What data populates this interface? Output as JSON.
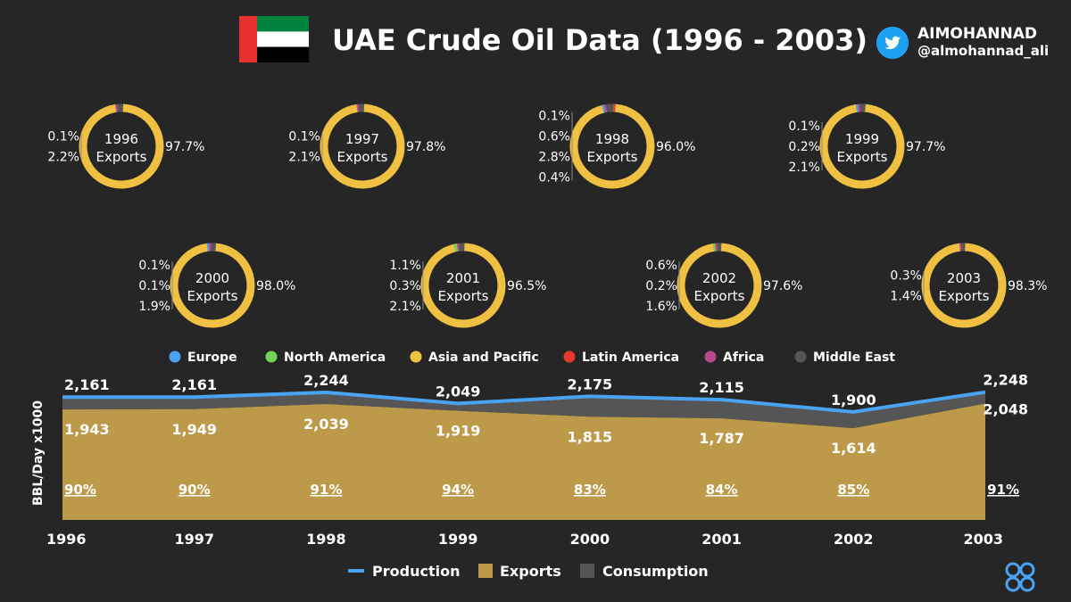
{
  "header": {
    "title": "UAE Crude Oil Data (1996 - 2003)",
    "brand_name": "AIMOHANNAD",
    "brand_handle": "@almohannad_ali",
    "flag_colors": {
      "green": "#00843d",
      "white": "#ffffff",
      "black": "#000000",
      "red": "#e8312f"
    }
  },
  "colors": {
    "europe": "#4aa3f0",
    "north_america": "#72d35a",
    "asia_pacific": "#f0c042",
    "latin_america": "#e63a2e",
    "africa": "#b8498e",
    "middle_east": "#555555",
    "production": "#4aa3f0",
    "exports": "#bd9a4a",
    "consumption": "#555555"
  },
  "chart_data": [
    {
      "type": "pie",
      "donut_label": "Exports",
      "legend": [
        "Europe",
        "North America",
        "Asia and Pacific",
        "Latin America",
        "Africa",
        "Middle East"
      ],
      "donuts": [
        {
          "year": "1996",
          "main_label": "97.7%",
          "side_labels": [
            "0.1%",
            "2.2%"
          ],
          "slices": [
            {
              "region": "Asia and Pacific",
              "value": 97.7
            },
            {
              "region": "Africa",
              "value": 0.1
            },
            {
              "region": "Middle East",
              "value": 2.2
            }
          ]
        },
        {
          "year": "1997",
          "main_label": "97.8%",
          "side_labels": [
            "0.1%",
            "2.1%"
          ],
          "slices": [
            {
              "region": "Asia and Pacific",
              "value": 97.8
            },
            {
              "region": "Africa",
              "value": 0.1
            },
            {
              "region": "Middle East",
              "value": 2.1
            }
          ]
        },
        {
          "year": "1998",
          "main_label": "96.0%",
          "side_labels": [
            "0.1%",
            "0.6%",
            "2.8%",
            "0.4%"
          ],
          "slices": [
            {
              "region": "Asia and Pacific",
              "value": 96.0
            },
            {
              "region": "Europe",
              "value": 0.1
            },
            {
              "region": "Africa",
              "value": 0.6
            },
            {
              "region": "Middle East",
              "value": 2.8
            },
            {
              "region": "Latin America",
              "value": 0.4
            }
          ]
        },
        {
          "year": "1999",
          "main_label": "97.7%",
          "side_labels": [
            "0.1%",
            "0.2%",
            "2.1%"
          ],
          "slices": [
            {
              "region": "Asia and Pacific",
              "value": 97.7
            },
            {
              "region": "Europe",
              "value": 0.1
            },
            {
              "region": "Africa",
              "value": 0.2
            },
            {
              "region": "Middle East",
              "value": 2.1
            }
          ]
        },
        {
          "year": "2000",
          "main_label": "98.0%",
          "side_labels": [
            "0.1%",
            "0.1%",
            "1.9%"
          ],
          "slices": [
            {
              "region": "Asia and Pacific",
              "value": 98.0
            },
            {
              "region": "Europe",
              "value": 0.1
            },
            {
              "region": "Africa",
              "value": 0.1
            },
            {
              "region": "Middle East",
              "value": 1.9
            }
          ]
        },
        {
          "year": "2001",
          "main_label": "96.5%",
          "side_labels": [
            "1.1%",
            "0.3%",
            "2.1%"
          ],
          "slices": [
            {
              "region": "Asia and Pacific",
              "value": 96.5
            },
            {
              "region": "North America",
              "value": 1.1
            },
            {
              "region": "Africa",
              "value": 0.3
            },
            {
              "region": "Middle East",
              "value": 2.1
            }
          ]
        },
        {
          "year": "2002",
          "main_label": "97.6%",
          "side_labels": [
            "0.6%",
            "0.2%",
            "1.6%"
          ],
          "slices": [
            {
              "region": "Asia and Pacific",
              "value": 97.6
            },
            {
              "region": "North America",
              "value": 0.6
            },
            {
              "region": "Africa",
              "value": 0.2
            },
            {
              "region": "Middle East",
              "value": 1.6
            }
          ]
        },
        {
          "year": "2003",
          "main_label": "98.3%",
          "side_labels": [
            "0.3%",
            "1.4%"
          ],
          "slices": [
            {
              "region": "Asia and Pacific",
              "value": 98.3
            },
            {
              "region": "Africa",
              "value": 0.3
            },
            {
              "region": "Middle East",
              "value": 1.4
            }
          ]
        }
      ]
    },
    {
      "type": "area",
      "ylabel": "BBL/Day x1000",
      "x": [
        "1996",
        "1997",
        "1998",
        "1999",
        "2000",
        "2001",
        "2002",
        "2003"
      ],
      "ylim": [
        0,
        2400
      ],
      "series": [
        {
          "name": "Production",
          "type": "line",
          "values": [
            2161,
            2161,
            2244,
            2049,
            2175,
            2115,
            1900,
            2248
          ],
          "labels": [
            "2,161",
            "2,161",
            "2,244",
            "2,049",
            "2,175",
            "2,115",
            "1,900",
            "2,248"
          ]
        },
        {
          "name": "Exports",
          "type": "area",
          "values": [
            1943,
            1949,
            2039,
            1919,
            1815,
            1787,
            1614,
            2048
          ],
          "labels": [
            "1,943",
            "1,949",
            "2,039",
            "1,919",
            "1,815",
            "1,787",
            "1,614",
            "2,048"
          ]
        },
        {
          "name": "Consumption",
          "type": "area"
        }
      ],
      "export_share_labels": [
        "90%",
        "90%",
        "91%",
        "94%",
        "83%",
        "84%",
        "85%",
        "91%"
      ],
      "legend": [
        "Production",
        "Exports",
        "Consumption"
      ]
    }
  ]
}
